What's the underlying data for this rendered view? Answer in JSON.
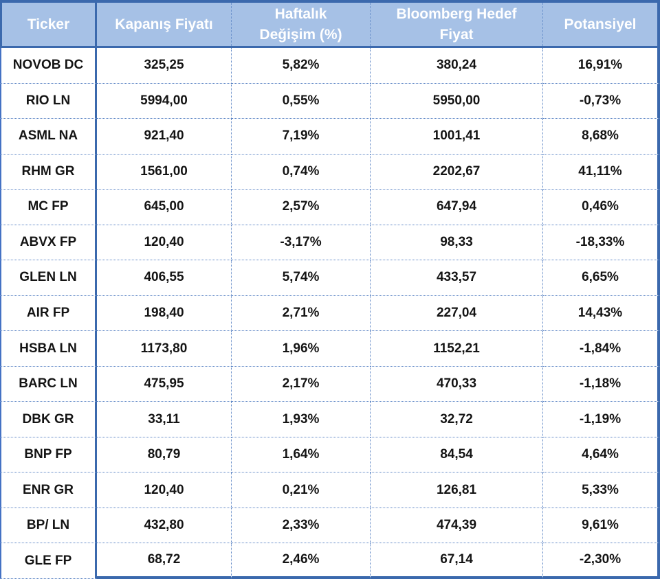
{
  "colors": {
    "header_background": "#a6c1e6",
    "header_text": "#ffffff",
    "thick_border": "#3b69ad",
    "dotted_separator": "#5b84c4",
    "body_text": "#141414"
  },
  "table": {
    "columns": [
      {
        "id": "ticker",
        "lines": [
          "Ticker"
        ]
      },
      {
        "id": "close",
        "lines": [
          "Kapanış Fiyatı"
        ]
      },
      {
        "id": "weekly",
        "lines": [
          "Haftalık",
          "Değişim (%)"
        ]
      },
      {
        "id": "target",
        "lines": [
          "Bloomberg Hedef",
          "Fiyat"
        ]
      },
      {
        "id": "potential",
        "lines": [
          "Potansiyel"
        ]
      }
    ],
    "rows": [
      {
        "ticker": "NOVOB DC",
        "close": "325,25",
        "weekly": "5,82%",
        "target": "380,24",
        "potential": "16,91%"
      },
      {
        "ticker": "RIO LN",
        "close": "5994,00",
        "weekly": "0,55%",
        "target": "5950,00",
        "potential": "-0,73%"
      },
      {
        "ticker": "ASML NA",
        "close": "921,40",
        "weekly": "7,19%",
        "target": "1001,41",
        "potential": "8,68%"
      },
      {
        "ticker": "RHM GR",
        "close": "1561,00",
        "weekly": "0,74%",
        "target": "2202,67",
        "potential": "41,11%"
      },
      {
        "ticker": "MC FP",
        "close": "645,00",
        "weekly": "2,57%",
        "target": "647,94",
        "potential": "0,46%"
      },
      {
        "ticker": "ABVX FP",
        "close": "120,40",
        "weekly": "-3,17%",
        "target": "98,33",
        "potential": "-18,33%"
      },
      {
        "ticker": "GLEN LN",
        "close": "406,55",
        "weekly": "5,74%",
        "target": "433,57",
        "potential": "6,65%"
      },
      {
        "ticker": "AIR FP",
        "close": "198,40",
        "weekly": "2,71%",
        "target": "227,04",
        "potential": "14,43%"
      },
      {
        "ticker": "HSBA LN",
        "close": "1173,80",
        "weekly": "1,96%",
        "target": "1152,21",
        "potential": "-1,84%"
      },
      {
        "ticker": "BARC LN",
        "close": "475,95",
        "weekly": "2,17%",
        "target": "470,33",
        "potential": "-1,18%"
      },
      {
        "ticker": "DBK GR",
        "close": "33,11",
        "weekly": "1,93%",
        "target": "32,72",
        "potential": "-1,19%"
      },
      {
        "ticker": "BNP FP",
        "close": "80,79",
        "weekly": "1,64%",
        "target": "84,54",
        "potential": "4,64%"
      },
      {
        "ticker": "ENR GR",
        "close": "120,40",
        "weekly": "0,21%",
        "target": "126,81",
        "potential": "5,33%"
      },
      {
        "ticker": "BP/ LN",
        "close": "432,80",
        "weekly": "2,33%",
        "target": "474,39",
        "potential": "9,61%"
      },
      {
        "ticker": "GLE FP",
        "close": "68,72",
        "weekly": "2,46%",
        "target": "67,14",
        "potential": "-2,30%"
      }
    ]
  },
  "chart_data": {
    "type": "table",
    "title": "",
    "columns": [
      "Ticker",
      "Kapanış Fiyatı",
      "Haftalık Değişim (%)",
      "Bloomberg Hedef Fiyat",
      "Potansiyel"
    ],
    "rows": [
      [
        "NOVOB DC",
        "325,25",
        "5,82%",
        "380,24",
        "16,91%"
      ],
      [
        "RIO LN",
        "5994,00",
        "0,55%",
        "5950,00",
        "-0,73%"
      ],
      [
        "ASML NA",
        "921,40",
        "7,19%",
        "1001,41",
        "8,68%"
      ],
      [
        "RHM GR",
        "1561,00",
        "0,74%",
        "2202,67",
        "41,11%"
      ],
      [
        "MC FP",
        "645,00",
        "2,57%",
        "647,94",
        "0,46%"
      ],
      [
        "ABVX FP",
        "120,40",
        "-3,17%",
        "98,33",
        "-18,33%"
      ],
      [
        "GLEN LN",
        "406,55",
        "5,74%",
        "433,57",
        "6,65%"
      ],
      [
        "AIR FP",
        "198,40",
        "2,71%",
        "227,04",
        "14,43%"
      ],
      [
        "HSBA LN",
        "1173,80",
        "1,96%",
        "1152,21",
        "-1,84%"
      ],
      [
        "BARC LN",
        "475,95",
        "2,17%",
        "470,33",
        "-1,18%"
      ],
      [
        "DBK GR",
        "33,11",
        "1,93%",
        "32,72",
        "-1,19%"
      ],
      [
        "BNP FP",
        "80,79",
        "1,64%",
        "84,54",
        "4,64%"
      ],
      [
        "ENR GR",
        "120,40",
        "0,21%",
        "126,81",
        "5,33%"
      ],
      [
        "BP/ LN",
        "432,80",
        "2,33%",
        "474,39",
        "9,61%"
      ],
      [
        "GLE FP",
        "68,72",
        "2,46%",
        "67,14",
        "-2,30%"
      ]
    ]
  }
}
